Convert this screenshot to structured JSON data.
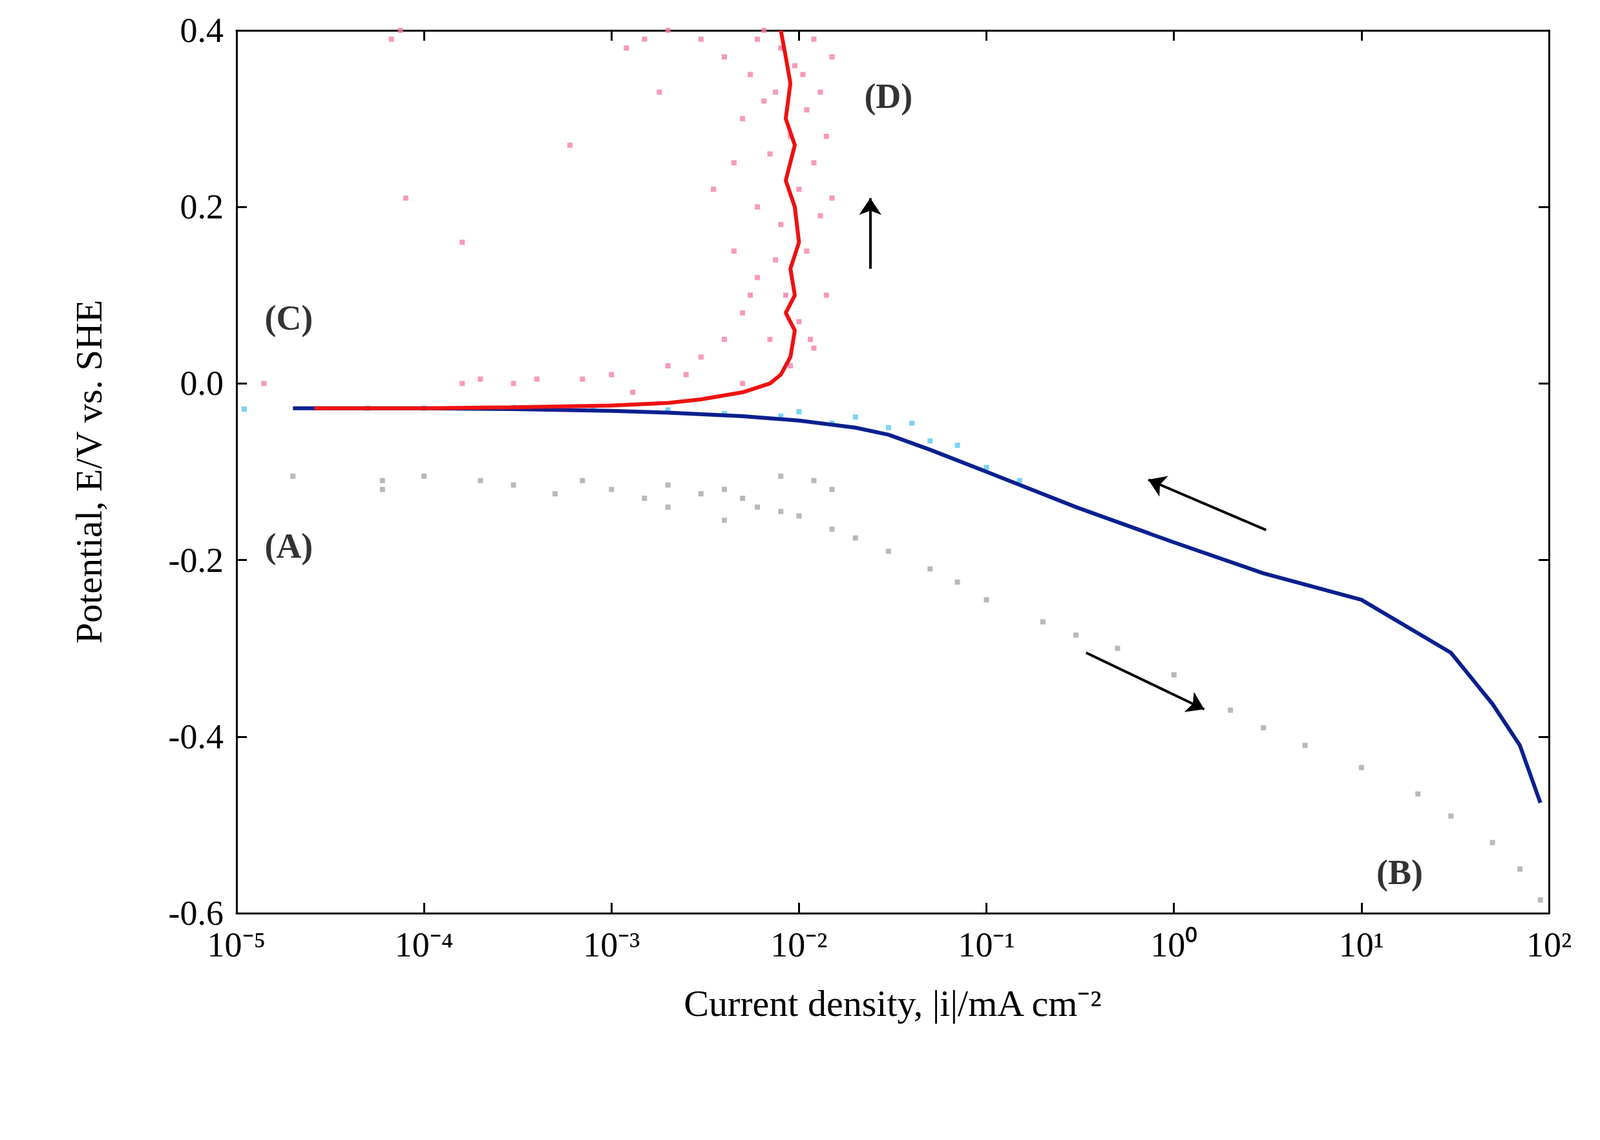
{
  "chart_data": {
    "type": "scatter",
    "xlabel": "Current density, |i|/mA cm⁻²",
    "ylabel": "Potential, E/V vs. SHE",
    "log": "x",
    "grid": false,
    "xlim": [
      1e-05,
      100
    ],
    "xticks": [
      {
        "value": 1e-05,
        "label": "10⁻⁵"
      },
      {
        "value": 0.0001,
        "label": "10⁻⁴"
      },
      {
        "value": 0.001,
        "label": "10⁻³"
      },
      {
        "value": 0.01,
        "label": "10⁻²"
      },
      {
        "value": 0.1,
        "label": "10⁻¹"
      },
      {
        "value": 1,
        "label": "10⁰"
      },
      {
        "value": 10,
        "label": "10¹"
      },
      {
        "value": 100,
        "label": "10²"
      }
    ],
    "ylim": [
      -0.6,
      0.4
    ],
    "yticks": [
      -0.6,
      -0.4,
      -0.2,
      {
        "value": 0,
        "label": "0.0"
      },
      0.2,
      0.4
    ],
    "series": [
      {
        "type": "scatter",
        "marker": "square",
        "color": "#a8a8a8",
        "x": [
          2e-05,
          6e-05,
          6e-05,
          0.0001,
          0.0002,
          0.0003,
          0.0005,
          0.0007,
          0.001,
          0.0015,
          0.002,
          0.002,
          0.003,
          0.004,
          0.004,
          0.005,
          0.006,
          0.008,
          0.008,
          0.01,
          0.012,
          0.015,
          0.015,
          0.02,
          0.03,
          0.05,
          0.07,
          0.1,
          0.2,
          0.3,
          0.5,
          1,
          2,
          3,
          5,
          10,
          20,
          30,
          50,
          70,
          90
        ],
        "values": [
          -0.105,
          -0.11,
          -0.12,
          -0.105,
          -0.11,
          -0.115,
          -0.125,
          -0.11,
          -0.12,
          -0.13,
          -0.115,
          -0.14,
          -0.125,
          -0.12,
          -0.155,
          -0.13,
          -0.14,
          -0.105,
          -0.145,
          -0.15,
          -0.11,
          -0.12,
          -0.165,
          -0.175,
          -0.19,
          -0.21,
          -0.225,
          -0.245,
          -0.27,
          -0.285,
          -0.3,
          -0.33,
          -0.37,
          -0.39,
          -0.41,
          -0.435,
          -0.465,
          -0.49,
          -0.52,
          -0.55,
          -0.585
        ]
      },
      {
        "type": "scatter",
        "marker": "square",
        "color": "#5bc8f0",
        "x": [
          1.1e-05,
          5e-05,
          0.0001,
          0.0003,
          0.0008,
          0.002,
          0.004,
          0.008,
          0.01,
          0.015,
          0.02,
          0.03,
          0.04,
          0.05,
          0.07,
          0.1,
          0.15
        ],
        "values": [
          -0.029,
          -0.028,
          -0.028,
          -0.027,
          -0.027,
          -0.03,
          -0.034,
          -0.037,
          -0.032,
          -0.045,
          -0.038,
          -0.05,
          -0.045,
          -0.065,
          -0.07,
          -0.095,
          -0.11
        ]
      },
      {
        "type": "line",
        "color": "#0a1f8f",
        "x": [
          2e-05,
          0.0001,
          0.0003,
          0.001,
          0.002,
          0.005,
          0.01,
          0.02,
          0.03,
          0.05,
          0.1,
          0.3,
          1,
          3,
          10,
          30,
          50,
          70,
          90
        ],
        "values": [
          -0.028,
          -0.028,
          -0.029,
          -0.031,
          -0.033,
          -0.037,
          -0.042,
          -0.05,
          -0.058,
          -0.075,
          -0.1,
          -0.14,
          -0.18,
          -0.215,
          -0.245,
          -0.305,
          -0.363,
          -0.41,
          -0.475
        ]
      },
      {
        "type": "scatter",
        "marker": "square",
        "color": "#f57fab",
        "x": [
          1.4e-05,
          6.7e-05,
          7.5e-05,
          8e-05,
          0.00016,
          0.00016,
          0.0002,
          0.0003,
          0.0004,
          0.0006,
          0.0007,
          0.001,
          0.0012,
          0.0013,
          0.0015,
          0.0018,
          0.002,
          0.002,
          0.0025,
          0.003,
          0.003,
          0.0035,
          0.004,
          0.004,
          0.0045,
          0.0045,
          0.005,
          0.005,
          0.005,
          0.0055,
          0.0055,
          0.006,
          0.006,
          0.006,
          0.0065,
          0.0065,
          0.007,
          0.007,
          0.0075,
          0.0075,
          0.008,
          0.008,
          0.0085,
          0.009,
          0.009,
          0.0095,
          0.01,
          0.01,
          0.0105,
          0.011,
          0.011,
          0.0115,
          0.012,
          0.012,
          0.012,
          0.013,
          0.013,
          0.014,
          0.014,
          0.015,
          0.015
        ],
        "values": [
          0.0,
          0.39,
          0.4,
          0.21,
          0.16,
          0.0,
          0.005,
          0.0,
          0.005,
          0.27,
          0.005,
          0.01,
          0.38,
          -0.01,
          0.39,
          0.33,
          0.02,
          0.4,
          0.01,
          0.39,
          0.03,
          0.22,
          0.05,
          0.37,
          0.15,
          0.25,
          0.3,
          0.08,
          0.0,
          0.35,
          0.1,
          0.2,
          0.12,
          0.39,
          0.4,
          0.32,
          0.26,
          0.05,
          0.33,
          0.14,
          0.18,
          0.38,
          0.1,
          0.28,
          0.02,
          0.36,
          0.22,
          0.07,
          0.35,
          0.31,
          0.15,
          0.05,
          0.39,
          0.25,
          0.04,
          0.19,
          0.33,
          0.1,
          0.28,
          0.37,
          0.21
        ]
      },
      {
        "type": "line",
        "color": "#ee1111",
        "x": [
          2.6e-05,
          0.0001,
          0.0003,
          0.001,
          0.002,
          0.003,
          0.005,
          0.007,
          0.008,
          0.009,
          0.0095,
          0.0085,
          0.0095,
          0.009,
          0.01,
          0.0095,
          0.0085,
          0.0095,
          0.0085,
          0.009,
          0.0085,
          0.008
        ],
        "values": [
          -0.028,
          -0.028,
          -0.027,
          -0.025,
          -0.022,
          -0.018,
          -0.01,
          0.0,
          0.01,
          0.03,
          0.06,
          0.08,
          0.1,
          0.13,
          0.16,
          0.2,
          0.23,
          0.27,
          0.3,
          0.34,
          0.37,
          0.4
        ]
      }
    ],
    "annotations": [
      {
        "text": "(A)",
        "x": 1.9e-05,
        "y": -0.184
      },
      {
        "text": "(B)",
        "x": 16,
        "y": -0.554
      },
      {
        "text": "(C)",
        "x": 1.9e-05,
        "y": 0.074
      },
      {
        "text": "(D)",
        "x": 0.03,
        "y": 0.325
      }
    ],
    "arrows": [
      {
        "from": [
          0.024,
          0.13
        ],
        "to": [
          0.024,
          0.21
        ]
      },
      {
        "from": [
          3.1,
          -0.166
        ],
        "to": [
          0.73,
          -0.109
        ]
      },
      {
        "from": [
          0.34,
          -0.305
        ],
        "to": [
          1.45,
          -0.369
        ]
      }
    ]
  }
}
